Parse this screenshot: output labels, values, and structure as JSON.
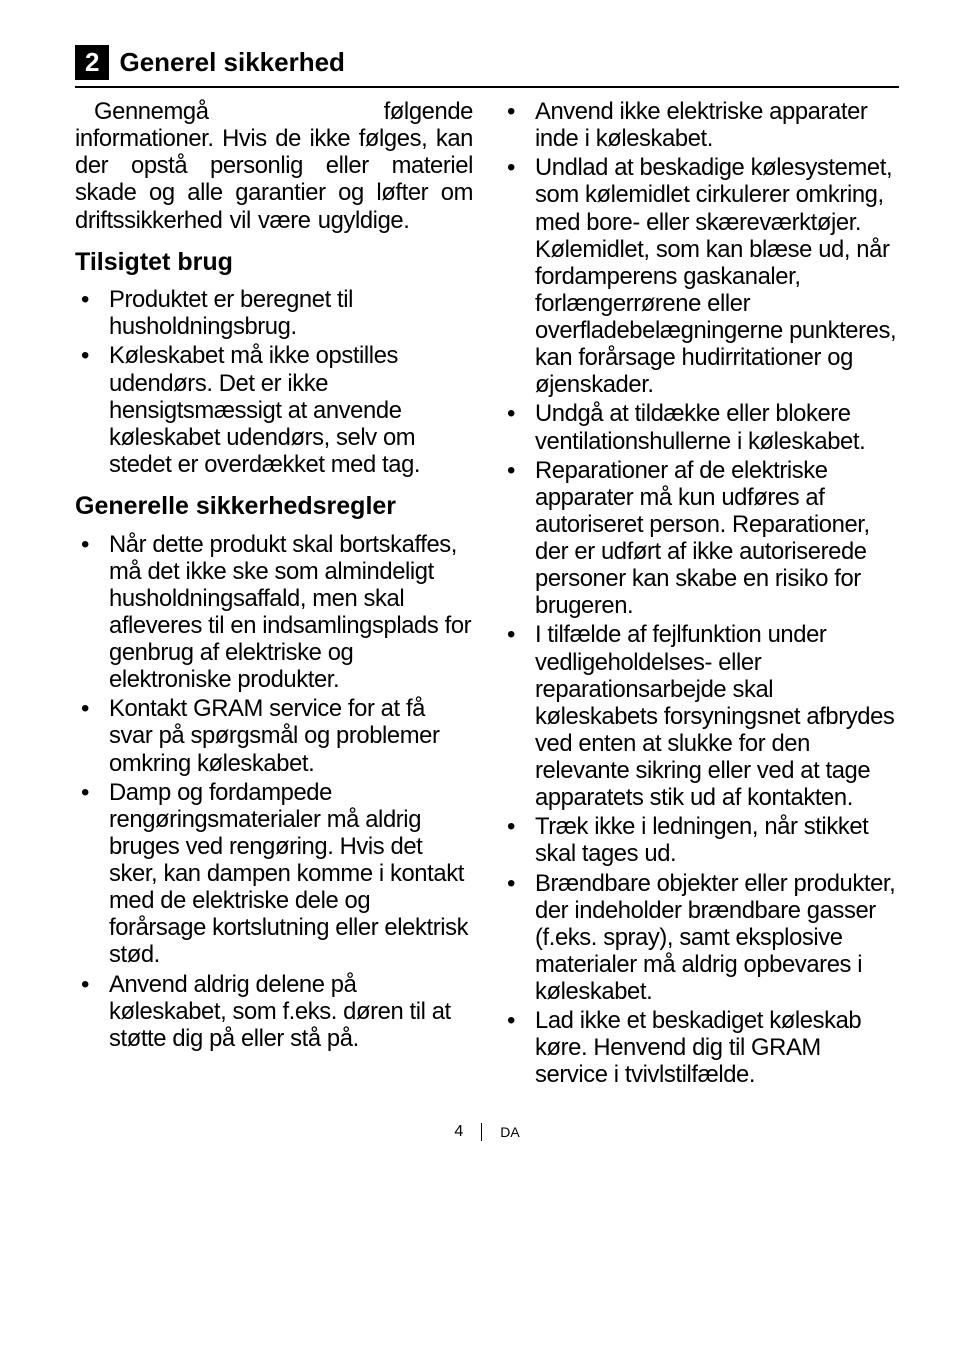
{
  "header": {
    "number": "2",
    "title": "Generel sikkerhed"
  },
  "left": {
    "intro": "Gennemgå følgende informationer. Hvis de ikke følges, kan der opstå personlig eller materiel skade og alle garantier og løfter om driftssikkerhed vil være  ugyldige.",
    "sub1": "Tilsigtet brug",
    "bullets1": [
      "Produktet er beregnet til husholdningsbrug.",
      "Køleskabet må ikke opstilles udendørs. Det  er  ikke hensigtsmæssigt  at  anvende køleskabet  udendørs,  selv om  stedet  er  overdækket med  tag."
    ],
    "sub2": "Generelle sikkerhedsregler",
    "bullets2": [
      "Når dette produkt skal bortskaffes, må det ikke ske som almindeligt husholdningsaffald, men skal afleveres til en indsamlingsplads for genbrug af elektriske og elektroniske produkter.",
      "Kontakt GRAM service  for at  få  svar  på  spørgsmål og  problemer  omkring køleskabet.",
      "Damp og fordampede rengøringsmaterialer må aldrig bruges ved rengøring. Hvis  det sker,  kan  dampen  komme i  kontakt  med  de  elektriske dele  og  forårsage  kortslutning eller  elektrisk  stød.",
      "Anvend aldrig delene på køleskabet, som f.eks. døren til at støtte dig på eller stå på."
    ]
  },
  "right": {
    "bullets": [
      "Anvend ikke elektriske apparater inde i køleskabet.",
      "Undlad at beskadige kølesystemet, som kølemidlet cirkulerer omkring, med bore- eller skæreværktøjer. Kølemidlet,  som  kan  blæse ud,  når  fordamperens gaskanaler,  forlængerrørene eller  overfladebelægningerne punkteres,  kan  forårsage hudirritationer  og  øjenskader.",
      "Undgå at tildække eller blokere ventilationshullerne i køleskabet.",
      "Reparationer af de elektriske apparater må kun udføres af autoriseret person. Reparationer,  der  er  udført  af ikke autoriserede personer  kan skabe  en  risiko  for  brugeren.",
      "I tilfælde af fejlfunktion under vedligeholdelses- eller reparationsarbejde skal køleskabets forsyningsnet afbrydes ved enten at slukke for den relevante sikring eller ved at tage apparatets stik ud af kontakten.",
      "Træk ikke i ledningen, når stikket skal tages ud.",
      "Brændbare objekter eller produkter, der indeholder brændbare gasser (f.eks. spray), samt eksplosive materialer må aldrig opbevares i køleskabet.",
      "Lad ikke et beskadiget køleskab køre. Henvend dig til GRAM service  i  tvivlstilfælde."
    ]
  },
  "footer": {
    "page": "4",
    "lang": "DA"
  }
}
